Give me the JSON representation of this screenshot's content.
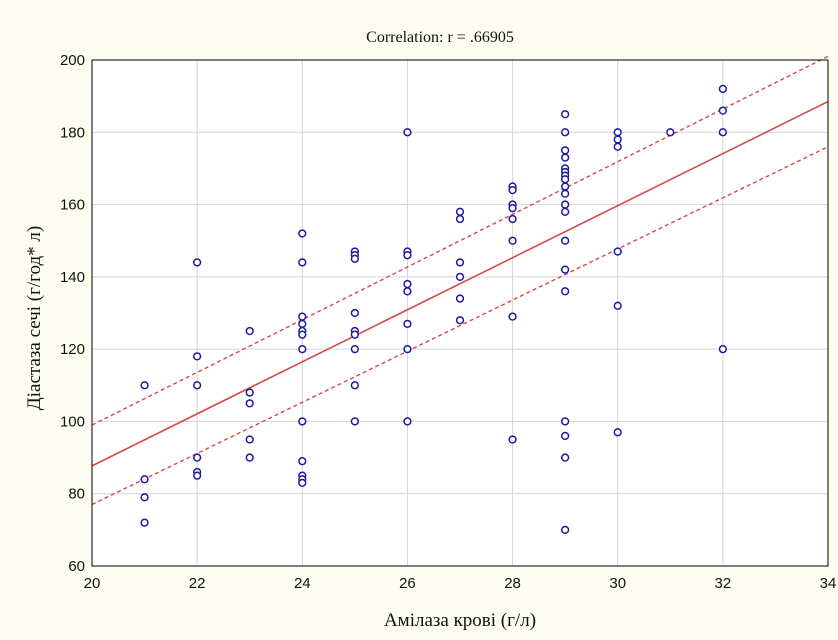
{
  "chart_data": {
    "type": "scatter",
    "title": "Correlation: r = .66905",
    "xlabel": "Амілаза крові (г/л)",
    "ylabel": "Діастаза сечі (г/год* л)",
    "xlim": [
      20,
      34
    ],
    "ylim": [
      60,
      200
    ],
    "xticks": [
      "20",
      "22",
      "24",
      "26",
      "28",
      "30",
      "32",
      "34"
    ],
    "yticks": [
      "60",
      "80",
      "100",
      "120",
      "140",
      "160",
      "180",
      "200"
    ],
    "grid": true,
    "point_color": "#1a1aa0",
    "line_color": "#d94848",
    "regression": {
      "intercept": -56.3,
      "slope": 7.2
    },
    "confidence_band": {
      "upper": [
        [
          20,
          99
        ],
        [
          34,
          201
        ]
      ],
      "lower": [
        [
          20,
          77
        ],
        [
          34,
          176
        ]
      ]
    },
    "points": [
      [
        21,
        110
      ],
      [
        21,
        84
      ],
      [
        21,
        79
      ],
      [
        21,
        72
      ],
      [
        22,
        144
      ],
      [
        22,
        118
      ],
      [
        22,
        110
      ],
      [
        22,
        90
      ],
      [
        22,
        86
      ],
      [
        22,
        85
      ],
      [
        23,
        125
      ],
      [
        23,
        108
      ],
      [
        23,
        105
      ],
      [
        23,
        95
      ],
      [
        23,
        90
      ],
      [
        24,
        152
      ],
      [
        24,
        144
      ],
      [
        24,
        129
      ],
      [
        24,
        127
      ],
      [
        24,
        125
      ],
      [
        24,
        124
      ],
      [
        24,
        120
      ],
      [
        24,
        100
      ],
      [
        24,
        89
      ],
      [
        24,
        85
      ],
      [
        24,
        84
      ],
      [
        24,
        83
      ],
      [
        25,
        147
      ],
      [
        25,
        146
      ],
      [
        25,
        145
      ],
      [
        25,
        130
      ],
      [
        25,
        125
      ],
      [
        25,
        124
      ],
      [
        25,
        120
      ],
      [
        25,
        110
      ],
      [
        25,
        100
      ],
      [
        26,
        180
      ],
      [
        26,
        147
      ],
      [
        26,
        146
      ],
      [
        26,
        138
      ],
      [
        26,
        136
      ],
      [
        26,
        127
      ],
      [
        26,
        120
      ],
      [
        26,
        100
      ],
      [
        27,
        158
      ],
      [
        27,
        156
      ],
      [
        27,
        144
      ],
      [
        27,
        140
      ],
      [
        27,
        134
      ],
      [
        27,
        128
      ],
      [
        28,
        165
      ],
      [
        28,
        164
      ],
      [
        28,
        160
      ],
      [
        28,
        159
      ],
      [
        28,
        156
      ],
      [
        28,
        150
      ],
      [
        28,
        129
      ],
      [
        28,
        95
      ],
      [
        29,
        185
      ],
      [
        29,
        180
      ],
      [
        29,
        175
      ],
      [
        29,
        173
      ],
      [
        29,
        170
      ],
      [
        29,
        169
      ],
      [
        29,
        168
      ],
      [
        29,
        167
      ],
      [
        29,
        165
      ],
      [
        29,
        163
      ],
      [
        29,
        160
      ],
      [
        29,
        158
      ],
      [
        29,
        150
      ],
      [
        29,
        142
      ],
      [
        29,
        136
      ],
      [
        29,
        100
      ],
      [
        29,
        96
      ],
      [
        29,
        90
      ],
      [
        29,
        70
      ],
      [
        30,
        180
      ],
      [
        30,
        178
      ],
      [
        30,
        176
      ],
      [
        30,
        147
      ],
      [
        30,
        132
      ],
      [
        30,
        97
      ],
      [
        31,
        180
      ],
      [
        32,
        192
      ],
      [
        32,
        186
      ],
      [
        32,
        180
      ],
      [
        32,
        120
      ]
    ]
  }
}
